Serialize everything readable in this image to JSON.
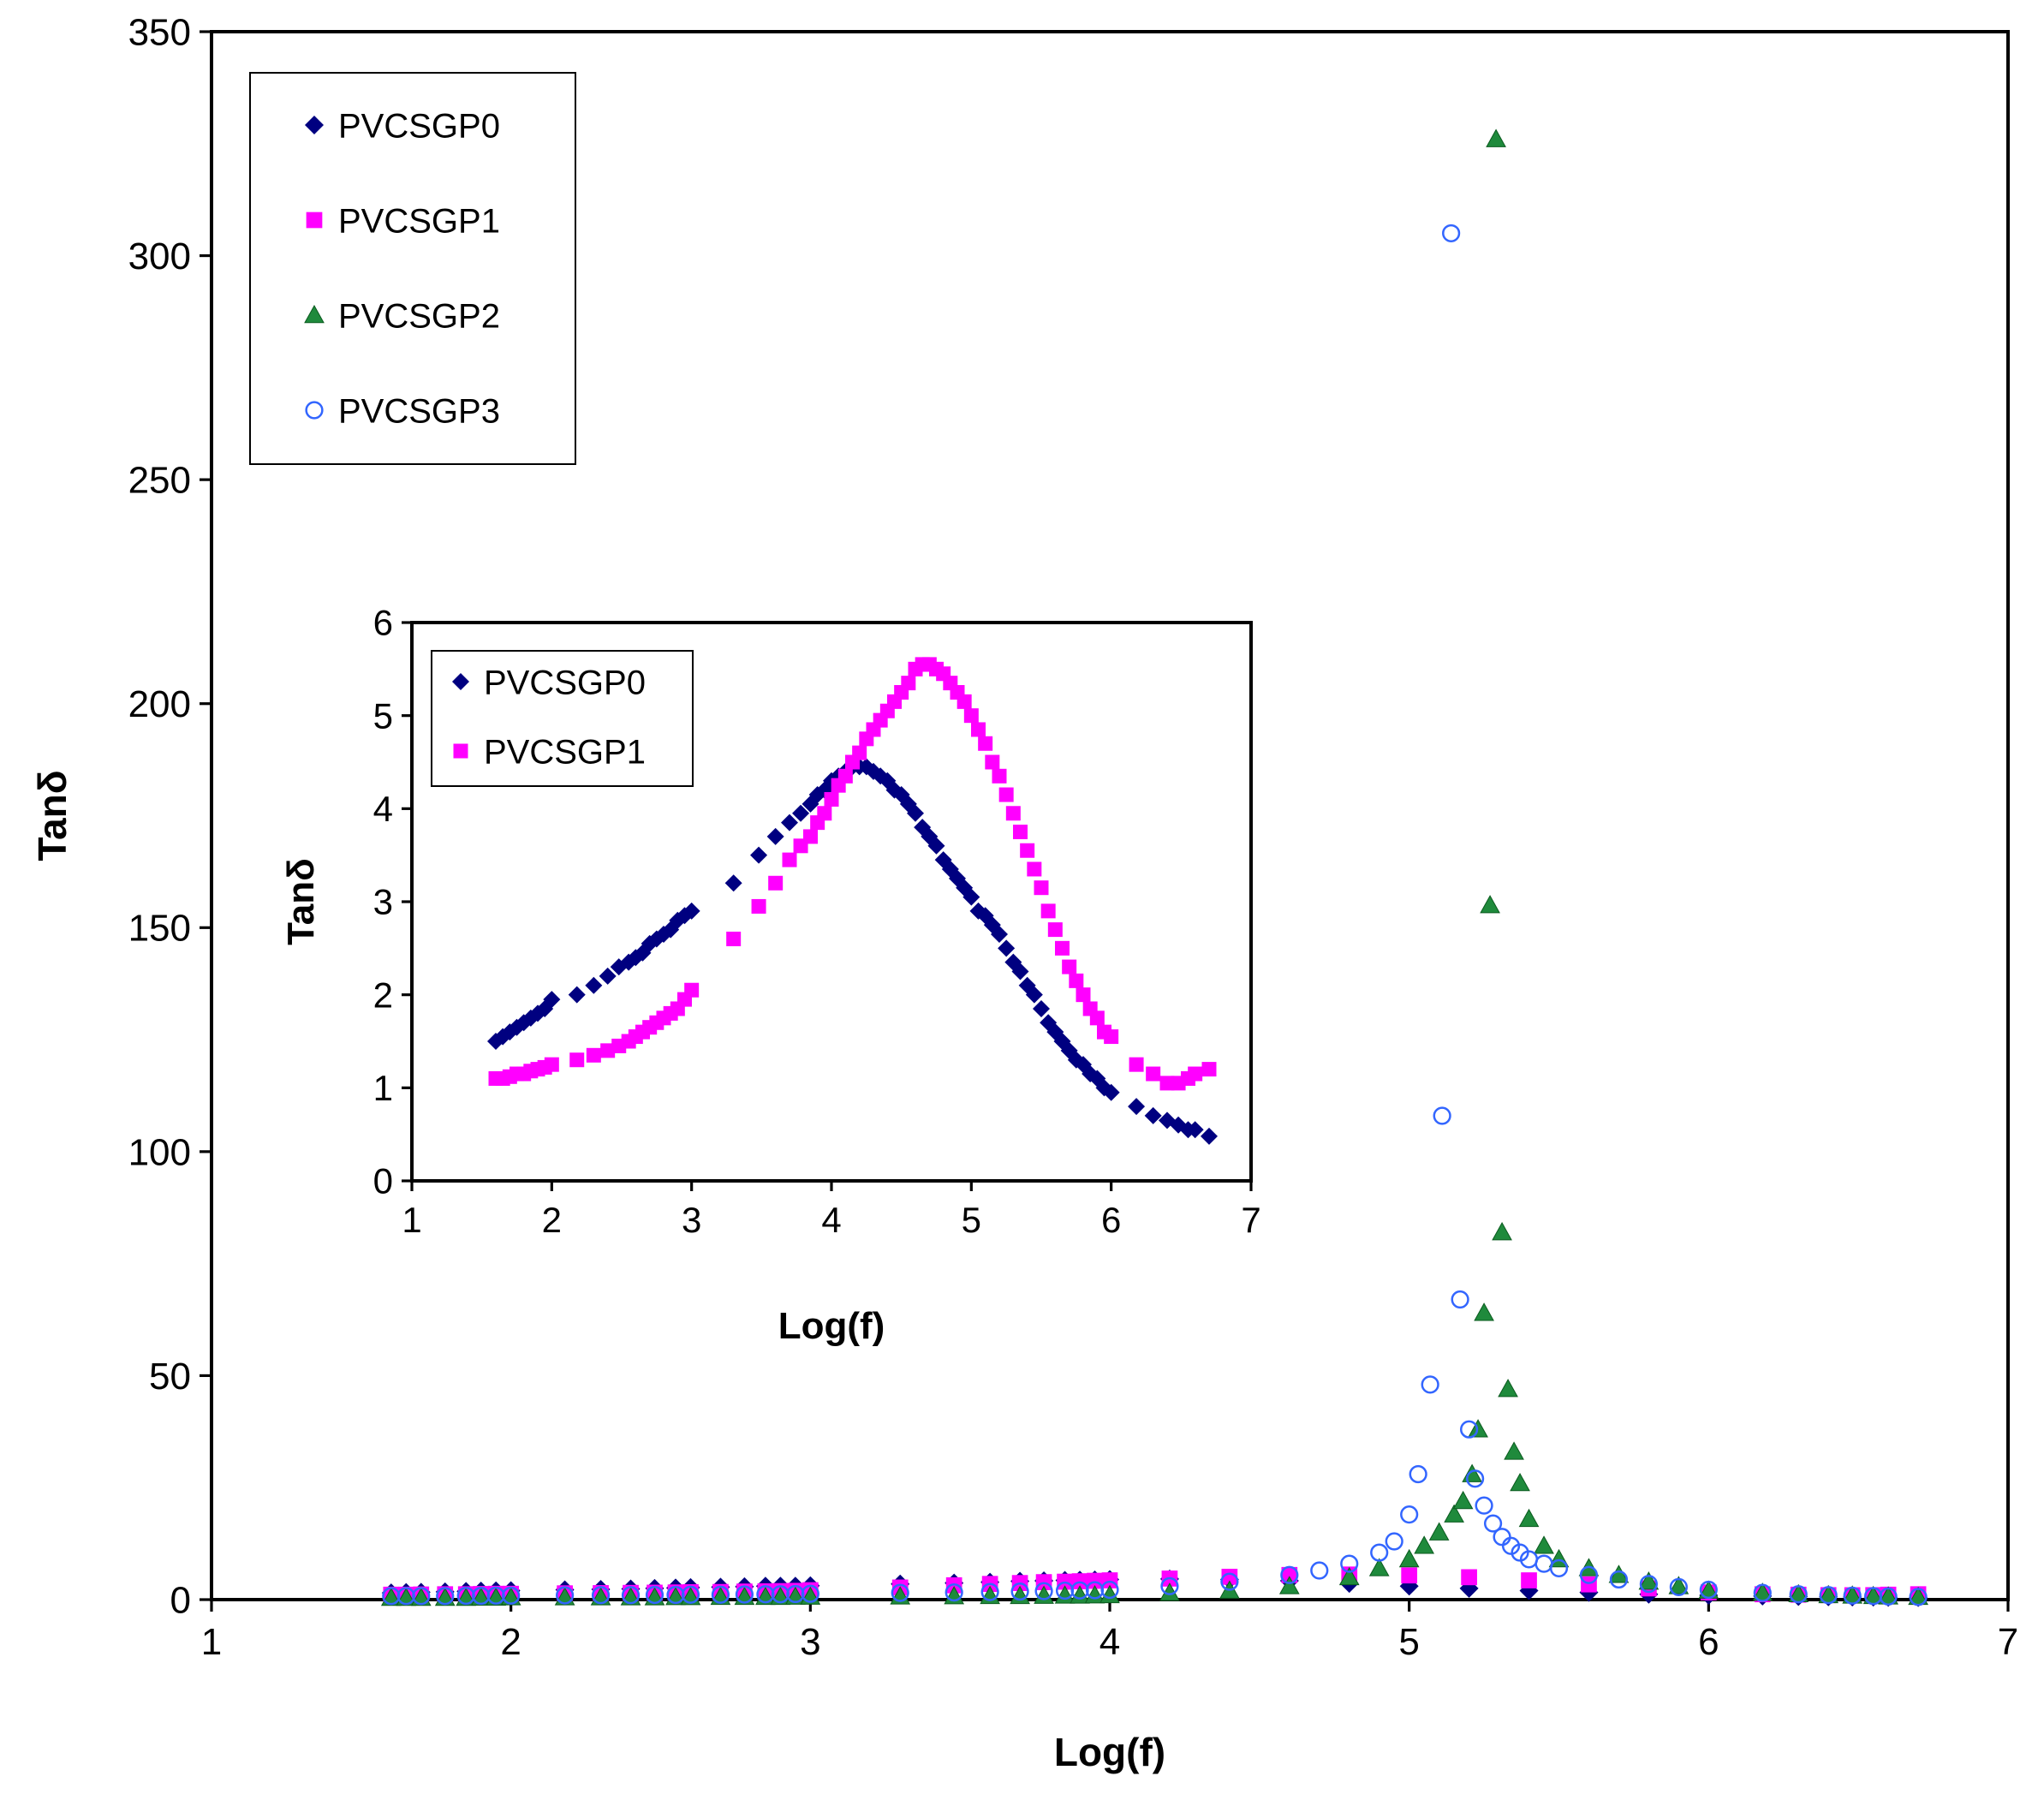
{
  "chart_data": [
    {
      "id": "main",
      "type": "scatter",
      "xlabel": "Log(f)",
      "ylabel": "Tanδ",
      "xlim": [
        1,
        7
      ],
      "ylim": [
        0,
        350
      ],
      "xticks": [
        1,
        2,
        3,
        4,
        5,
        6,
        7
      ],
      "yticks": [
        0,
        50,
        100,
        150,
        200,
        250,
        300,
        350
      ],
      "grid": false,
      "legend_position": "top-left",
      "series": [
        {
          "name": "PVCSGP0",
          "marker": "diamond",
          "color": "#000080",
          "x": [
            1.6,
            1.65,
            1.7,
            1.78,
            1.85,
            1.9,
            1.95,
            2.0,
            2.18,
            2.3,
            2.4,
            2.48,
            2.55,
            2.6,
            2.7,
            2.78,
            2.85,
            2.9,
            2.95,
            3.0,
            3.3,
            3.48,
            3.6,
            3.7,
            3.78,
            3.85,
            3.9,
            3.95,
            4.0,
            4.2,
            4.4,
            4.6,
            4.8,
            5.0,
            5.2,
            5.4,
            5.6,
            5.8,
            6.0,
            6.18,
            6.3,
            6.4,
            6.48,
            6.55,
            6.6,
            6.7
          ],
          "y": [
            1.5,
            1.6,
            1.65,
            1.75,
            1.85,
            1.9,
            1.95,
            2.0,
            2.2,
            2.3,
            2.4,
            2.5,
            2.6,
            2.7,
            2.8,
            2.9,
            3.0,
            3.0,
            3.0,
            3.1,
            3.5,
            3.7,
            3.9,
            4.1,
            4.2,
            4.3,
            4.35,
            4.4,
            4.5,
            4.6,
            4.5,
            4.2,
            3.6,
            3.0,
            2.5,
            2.0,
            1.6,
            1.2,
            0.95,
            0.8,
            0.7,
            0.62,
            0.58,
            0.55,
            0.5,
            0.45
          ]
        },
        {
          "name": "PVCSGP1",
          "marker": "square",
          "color": "#ff00ff",
          "x": [
            1.6,
            1.65,
            1.7,
            1.78,
            1.85,
            1.9,
            1.95,
            2.0,
            2.18,
            2.3,
            2.4,
            2.48,
            2.55,
            2.6,
            2.7,
            2.78,
            2.85,
            2.9,
            2.95,
            3.0,
            3.3,
            3.48,
            3.6,
            3.7,
            3.78,
            3.85,
            3.9,
            3.95,
            4.0,
            4.2,
            4.4,
            4.6,
            4.8,
            5.0,
            5.2,
            5.4,
            5.6,
            5.8,
            6.0,
            6.18,
            6.3,
            6.4,
            6.48,
            6.55,
            6.6,
            6.7
          ],
          "y": [
            1.1,
            1.1,
            1.15,
            1.2,
            1.2,
            1.25,
            1.3,
            1.3,
            1.4,
            1.45,
            1.5,
            1.55,
            1.6,
            1.65,
            1.7,
            1.8,
            1.85,
            1.9,
            1.95,
            2.1,
            2.7,
            3.2,
            3.5,
            3.7,
            3.9,
            4.0,
            4.1,
            4.2,
            4.3,
            4.7,
            5.1,
            5.5,
            5.6,
            5.4,
            5.0,
            4.3,
            3.4,
            2.5,
            1.6,
            1.2,
            1.1,
            1.0,
            0.98,
            1.0,
            1.1,
            1.2
          ]
        },
        {
          "name": "PVCSGP2",
          "marker": "triangle",
          "color": "#1f8a3c",
          "x": [
            1.6,
            1.65,
            1.7,
            1.78,
            1.85,
            1.9,
            1.95,
            2.0,
            2.18,
            2.3,
            2.4,
            2.48,
            2.55,
            2.6,
            2.7,
            2.78,
            2.85,
            2.9,
            2.95,
            3.0,
            3.3,
            3.48,
            3.6,
            3.7,
            3.78,
            3.85,
            3.9,
            3.95,
            4.0,
            4.2,
            4.4,
            4.6,
            4.8,
            4.9,
            5.0,
            5.05,
            5.1,
            5.15,
            5.18,
            5.21,
            5.23,
            5.25,
            5.27,
            5.29,
            5.31,
            5.33,
            5.35,
            5.37,
            5.4,
            5.45,
            5.5,
            5.6,
            5.7,
            5.8,
            5.9,
            6.0,
            6.18,
            6.3,
            6.4,
            6.48,
            6.55,
            6.6,
            6.7
          ],
          "y": [
            0.4,
            0.4,
            0.4,
            0.4,
            0.4,
            0.45,
            0.45,
            0.5,
            0.5,
            0.5,
            0.5,
            0.5,
            0.55,
            0.55,
            0.6,
            0.6,
            0.6,
            0.6,
            0.65,
            0.65,
            0.7,
            0.75,
            0.8,
            0.8,
            0.85,
            0.9,
            0.9,
            0.95,
            1.0,
            1.5,
            2.0,
            3.0,
            5.0,
            7.0,
            9.0,
            12.0,
            15.0,
            19.0,
            22.0,
            28.0,
            38.0,
            64.0,
            155.0,
            326.0,
            82.0,
            47.0,
            33.0,
            26.0,
            18.0,
            12.0,
            9.0,
            7.0,
            5.5,
            4.0,
            3.0,
            2.0,
            1.5,
            1.2,
            1.0,
            0.9,
            0.8,
            0.7,
            0.6
          ]
        },
        {
          "name": "PVCSGP3",
          "marker": "circle-open",
          "color": "#3366ff",
          "x": [
            1.6,
            1.65,
            1.7,
            1.78,
            1.85,
            1.9,
            1.95,
            2.0,
            2.18,
            2.3,
            2.4,
            2.48,
            2.55,
            2.6,
            2.7,
            2.78,
            2.85,
            2.9,
            2.95,
            3.0,
            3.3,
            3.48,
            3.6,
            3.7,
            3.78,
            3.85,
            3.9,
            3.95,
            4.0,
            4.2,
            4.4,
            4.6,
            4.7,
            4.8,
            4.9,
            4.95,
            5.0,
            5.03,
            5.07,
            5.11,
            5.14,
            5.17,
            5.2,
            5.22,
            5.25,
            5.28,
            5.31,
            5.34,
            5.37,
            5.4,
            5.45,
            5.5,
            5.6,
            5.7,
            5.8,
            5.9,
            6.0,
            6.18,
            6.3,
            6.4,
            6.48,
            6.55,
            6.6,
            6.7
          ],
          "y": [
            0.8,
            0.8,
            0.8,
            0.8,
            0.85,
            0.85,
            0.9,
            0.9,
            0.95,
            1.0,
            1.0,
            1.05,
            1.05,
            1.1,
            1.1,
            1.15,
            1.2,
            1.2,
            1.25,
            1.3,
            1.5,
            1.6,
            1.7,
            1.8,
            1.9,
            2.0,
            2.05,
            2.1,
            2.2,
            3.0,
            4.0,
            5.5,
            6.5,
            8.0,
            10.5,
            13.0,
            19.0,
            28.0,
            48.0,
            108.0,
            305.0,
            67.0,
            38.0,
            27.0,
            21.0,
            17.0,
            14.0,
            12.0,
            10.5,
            9.0,
            8.0,
            7.0,
            5.5,
            4.5,
            3.5,
            2.8,
            2.2,
            1.5,
            1.2,
            1.0,
            0.9,
            0.8,
            0.7,
            0.6
          ]
        }
      ]
    },
    {
      "id": "inset",
      "type": "scatter",
      "xlabel": "Log(f)",
      "ylabel": "Tanδ",
      "xlim": [
        1,
        7
      ],
      "ylim": [
        0,
        6
      ],
      "xticks": [
        1,
        2,
        3,
        4,
        5,
        6,
        7
      ],
      "yticks": [
        0,
        1,
        2,
        3,
        4,
        5,
        6
      ],
      "grid": false,
      "legend_position": "top-left",
      "series": [
        {
          "name": "PVCSGP0",
          "marker": "diamond",
          "color": "#000080",
          "x": [
            1.6,
            1.65,
            1.7,
            1.75,
            1.8,
            1.85,
            1.9,
            1.95,
            2.0,
            2.18,
            2.3,
            2.4,
            2.48,
            2.55,
            2.6,
            2.65,
            2.7,
            2.75,
            2.8,
            2.85,
            2.9,
            2.95,
            3.0,
            3.3,
            3.48,
            3.6,
            3.7,
            3.78,
            3.85,
            3.9,
            3.95,
            4.0,
            4.05,
            4.1,
            4.15,
            4.2,
            4.25,
            4.3,
            4.35,
            4.4,
            4.45,
            4.5,
            4.55,
            4.6,
            4.65,
            4.7,
            4.75,
            4.8,
            4.85,
            4.9,
            4.95,
            5.0,
            5.05,
            5.1,
            5.15,
            5.2,
            5.25,
            5.3,
            5.35,
            5.4,
            5.45,
            5.5,
            5.55,
            5.6,
            5.65,
            5.7,
            5.75,
            5.8,
            5.85,
            5.9,
            5.95,
            6.0,
            6.18,
            6.3,
            6.4,
            6.48,
            6.55,
            6.6,
            6.7
          ],
          "y": [
            1.5,
            1.55,
            1.6,
            1.65,
            1.7,
            1.75,
            1.8,
            1.85,
            1.95,
            2.0,
            2.1,
            2.2,
            2.3,
            2.35,
            2.4,
            2.45,
            2.55,
            2.6,
            2.65,
            2.7,
            2.8,
            2.85,
            2.9,
            3.2,
            3.5,
            3.7,
            3.85,
            3.95,
            4.05,
            4.15,
            4.2,
            4.3,
            4.35,
            4.4,
            4.45,
            4.45,
            4.45,
            4.4,
            4.35,
            4.3,
            4.2,
            4.15,
            4.05,
            3.95,
            3.8,
            3.7,
            3.6,
            3.45,
            3.35,
            3.25,
            3.15,
            3.05,
            2.9,
            2.85,
            2.75,
            2.65,
            2.5,
            2.35,
            2.25,
            2.1,
            2.0,
            1.85,
            1.7,
            1.6,
            1.5,
            1.4,
            1.3,
            1.25,
            1.15,
            1.1,
            1.0,
            0.95,
            0.8,
            0.7,
            0.65,
            0.6,
            0.55,
            0.55,
            0.48
          ]
        },
        {
          "name": "PVCSGP1",
          "marker": "square",
          "color": "#ff00ff",
          "x": [
            1.6,
            1.65,
            1.7,
            1.75,
            1.8,
            1.85,
            1.9,
            1.95,
            2.0,
            2.18,
            2.3,
            2.4,
            2.48,
            2.55,
            2.6,
            2.65,
            2.7,
            2.75,
            2.8,
            2.85,
            2.9,
            2.95,
            3.0,
            3.3,
            3.48,
            3.6,
            3.7,
            3.78,
            3.85,
            3.9,
            3.95,
            4.0,
            4.05,
            4.1,
            4.15,
            4.2,
            4.25,
            4.3,
            4.35,
            4.4,
            4.45,
            4.5,
            4.55,
            4.6,
            4.65,
            4.7,
            4.75,
            4.8,
            4.85,
            4.9,
            4.95,
            5.0,
            5.05,
            5.1,
            5.15,
            5.2,
            5.25,
            5.3,
            5.35,
            5.4,
            5.45,
            5.5,
            5.55,
            5.6,
            5.65,
            5.7,
            5.75,
            5.8,
            5.85,
            5.9,
            5.95,
            6.0,
            6.18,
            6.3,
            6.4,
            6.48,
            6.55,
            6.6,
            6.7
          ],
          "y": [
            1.1,
            1.1,
            1.12,
            1.15,
            1.15,
            1.18,
            1.2,
            1.22,
            1.25,
            1.3,
            1.35,
            1.4,
            1.45,
            1.5,
            1.55,
            1.6,
            1.65,
            1.7,
            1.75,
            1.8,
            1.85,
            1.95,
            2.05,
            2.6,
            2.95,
            3.2,
            3.45,
            3.6,
            3.7,
            3.85,
            3.95,
            4.1,
            4.25,
            4.35,
            4.5,
            4.6,
            4.75,
            4.85,
            4.95,
            5.05,
            5.15,
            5.25,
            5.35,
            5.5,
            5.55,
            5.55,
            5.5,
            5.45,
            5.35,
            5.25,
            5.15,
            5.0,
            4.85,
            4.7,
            4.5,
            4.35,
            4.15,
            3.95,
            3.75,
            3.55,
            3.35,
            3.15,
            2.9,
            2.7,
            2.5,
            2.3,
            2.15,
            2.0,
            1.85,
            1.75,
            1.6,
            1.55,
            1.25,
            1.15,
            1.05,
            1.05,
            1.1,
            1.15,
            1.2
          ]
        }
      ]
    }
  ]
}
